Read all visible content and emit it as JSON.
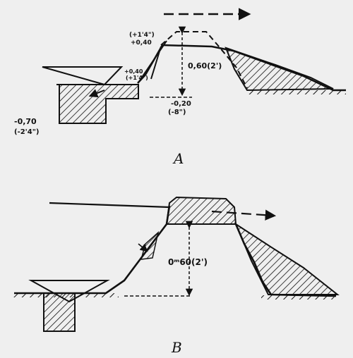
{
  "figure_a": {
    "caption": "A",
    "dims": {
      "crest_above": [
        "+0,40",
        "(+1'4\")"
      ],
      "step": [
        "+0,40",
        "(+1'4\")"
      ],
      "height": "0,60(2')",
      "toe": [
        "-0,20",
        "(-8\")"
      ],
      "trench": [
        "-0,70",
        "(-2'4\")"
      ]
    }
  },
  "figure_b": {
    "caption": "B",
    "dims": {
      "height": "0ᵐ60(2')"
    }
  },
  "colors": {
    "ink": "#111111",
    "paper": "#efefef"
  }
}
